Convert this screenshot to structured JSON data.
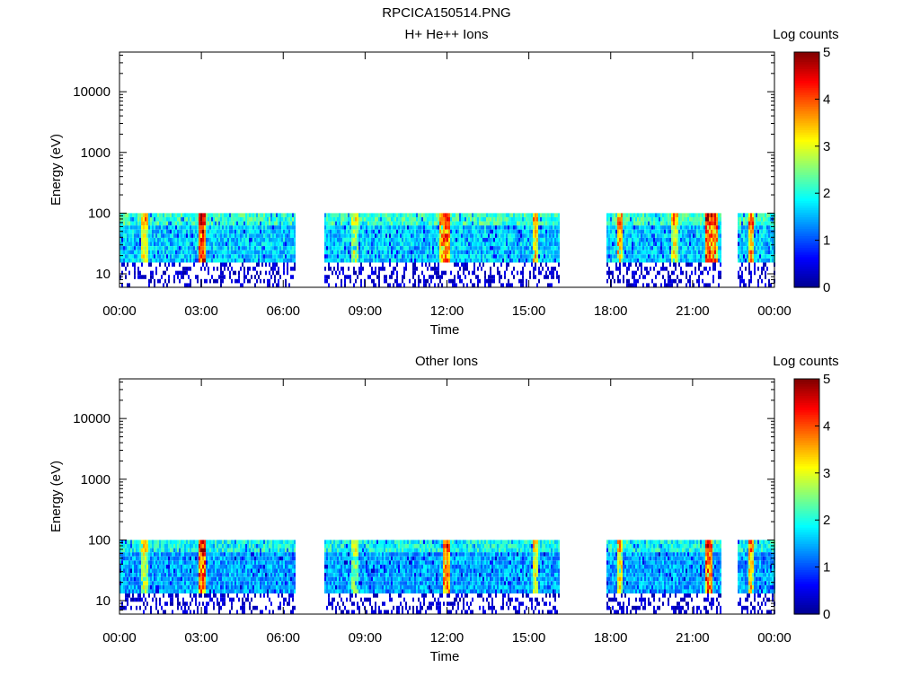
{
  "figure": {
    "title": "RPCICA150514.PNG"
  },
  "colorbar": {
    "label": "Log counts",
    "ticks": [
      "0",
      "1",
      "2",
      "3",
      "4",
      "5"
    ],
    "range": [
      0,
      5
    ],
    "colormap": [
      "#00008f",
      "#0000ff",
      "#0080ff",
      "#00ffff",
      "#80ff80",
      "#ffff00",
      "#ff8000",
      "#ff0000",
      "#800000"
    ]
  },
  "chart_data": [
    {
      "type": "heatmap",
      "title": "H+ He++ Ions",
      "xlabel": "Time",
      "ylabel": "Energy (eV)",
      "y_scale": "log",
      "ylim": [
        6,
        45000
      ],
      "xlim_hours": [
        0,
        24
      ],
      "x_ticks": [
        "00:00",
        "03:00",
        "06:00",
        "09:00",
        "12:00",
        "15:00",
        "18:00",
        "21:00",
        "00:00"
      ],
      "y_ticks": [
        "10",
        "100",
        "1000",
        "10000"
      ],
      "energy_range_ev": [
        6,
        100
      ],
      "coverage_hours": [
        [
          0,
          6.4
        ],
        [
          7.5,
          16.1
        ],
        [
          17.8,
          22.0
        ],
        [
          22.6,
          24
        ]
      ],
      "background_log_counts": 1.2,
      "cutoff_ev": 14,
      "hot_spots_hours": [
        {
          "t": 0.9,
          "log_counts": 3.0
        },
        {
          "t": 3.0,
          "log_counts": 4.5
        },
        {
          "t": 8.6,
          "log_counts": 2.6
        },
        {
          "t": 11.8,
          "log_counts": 3.5
        },
        {
          "t": 11.95,
          "log_counts": 4.0
        },
        {
          "t": 15.2,
          "log_counts": 3.2
        },
        {
          "t": 18.3,
          "log_counts": 3.4
        },
        {
          "t": 20.3,
          "log_counts": 3.0
        },
        {
          "t": 21.55,
          "log_counts": 4.3
        },
        {
          "t": 21.8,
          "log_counts": 3.8
        },
        {
          "t": 23.1,
          "log_counts": 3.6
        }
      ]
    },
    {
      "type": "heatmap",
      "title": "Other Ions",
      "xlabel": "Time",
      "ylabel": "Energy (eV)",
      "y_scale": "log",
      "ylim": [
        6,
        45000
      ],
      "xlim_hours": [
        0,
        24
      ],
      "x_ticks": [
        "00:00",
        "03:00",
        "06:00",
        "09:00",
        "12:00",
        "15:00",
        "18:00",
        "21:00",
        "00:00"
      ],
      "y_ticks": [
        "10",
        "100",
        "1000",
        "10000"
      ],
      "energy_range_ev": [
        6,
        100
      ],
      "coverage_hours": [
        [
          0,
          6.4
        ],
        [
          7.5,
          16.1
        ],
        [
          17.8,
          22.0
        ],
        [
          22.6,
          24
        ]
      ],
      "background_log_counts": 1.0,
      "cutoff_ev": 12,
      "hot_spots_hours": [
        {
          "t": 0.9,
          "log_counts": 2.8
        },
        {
          "t": 3.0,
          "log_counts": 4.3
        },
        {
          "t": 8.6,
          "log_counts": 2.4
        },
        {
          "t": 11.95,
          "log_counts": 3.8
        },
        {
          "t": 15.2,
          "log_counts": 3.0
        },
        {
          "t": 18.3,
          "log_counts": 3.2
        },
        {
          "t": 21.55,
          "log_counts": 4.2
        },
        {
          "t": 23.1,
          "log_counts": 3.4
        }
      ]
    }
  ]
}
